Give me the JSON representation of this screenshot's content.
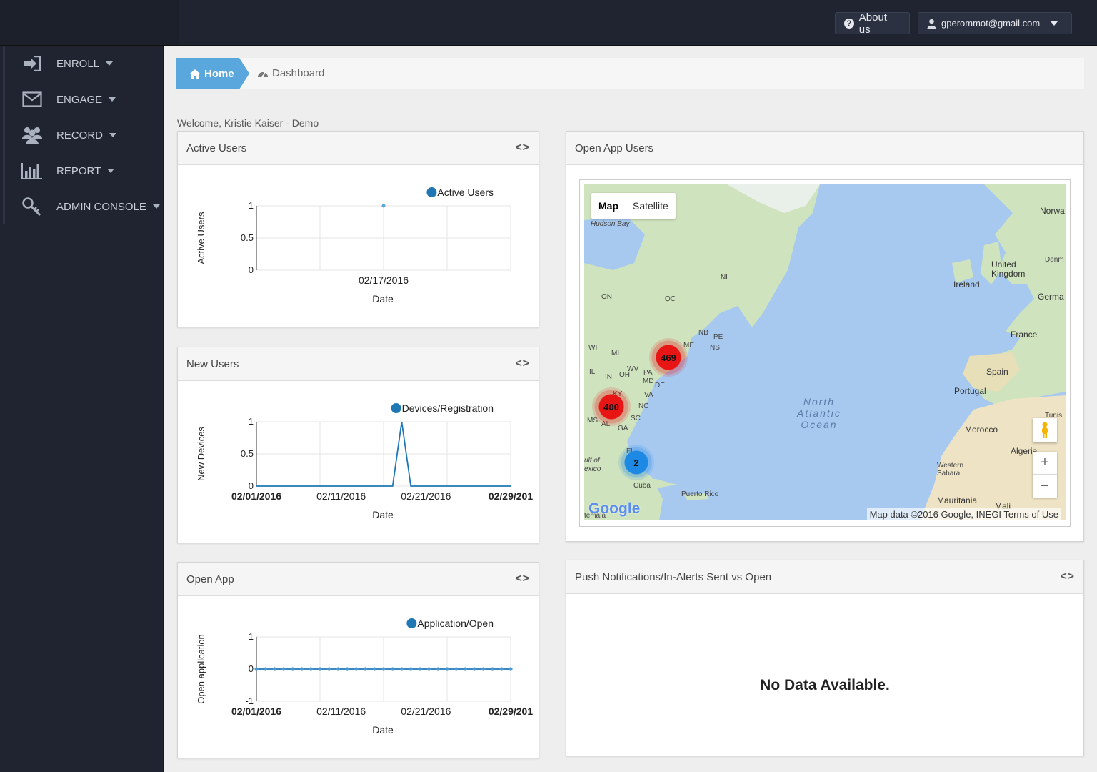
{
  "header": {
    "about_label": "About us",
    "user_email": "gperommot@gmail.com"
  },
  "sidebar": {
    "items": [
      {
        "label": "ENROLL",
        "icon": "sign-in-icon"
      },
      {
        "label": "ENGAGE",
        "icon": "envelope-icon"
      },
      {
        "label": "RECORD",
        "icon": "users-icon"
      },
      {
        "label": "REPORT",
        "icon": "bar-chart-icon"
      },
      {
        "label": "ADMIN CONSOLE",
        "icon": "key-icon"
      }
    ]
  },
  "breadcrumb": {
    "home": "Home",
    "current": "Dashboard"
  },
  "welcome": "Welcome, Kristie Kaiser - Demo",
  "panels": {
    "active_users": {
      "title": "Active Users",
      "toggle": "<>"
    },
    "new_users": {
      "title": "New Users",
      "toggle": "<>"
    },
    "open_app": {
      "title": "Open App",
      "toggle": "<>"
    },
    "open_app_users": {
      "title": "Open App Users"
    },
    "push": {
      "title": "Push Notifications/In-Alerts Sent vs Open",
      "toggle": "<>",
      "message": "No Data Available."
    }
  },
  "map": {
    "tab_map": "Map",
    "tab_satellite": "Satellite",
    "footer": "Map data ©2016 Google, INEGI   Terms of Use",
    "logo": "Google",
    "ocean": "North\nAtlantic\nOcean",
    "labels": {
      "hudson": "Hudson Bay",
      "ireland": "Ireland",
      "uk": "United\nKingdom",
      "norway": "Norwa",
      "denmark": "Denm",
      "germany": "Germa",
      "france": "France",
      "spain": "Spain",
      "portugal": "Portugal",
      "morocco": "Morocco",
      "algeria": "Algeria",
      "tunisia": "Tunis",
      "western_sahara": "Western\nSahara",
      "mauritania": "Mauritania",
      "mali": "Mali",
      "cuba": "Cuba",
      "puerto_rico": "Puerto Rico",
      "gulf": "ulf of\nexico",
      "temala": "temala",
      "on": "ON",
      "qc": "QC",
      "nl": "NL",
      "nb": "NB",
      "pe": "PE",
      "ns": "NS",
      "me": "ME",
      "wi": "WI",
      "mi": "MI",
      "il": "IL",
      "in": "IN",
      "oh": "OH",
      "pa": "PA",
      "md": "MD",
      "de": "DE",
      "wv": "WV",
      "va": "VA",
      "ky": "KY",
      "nc": "NC",
      "sc": "SC",
      "ms": "MS",
      "al": "AL",
      "ga": "GA",
      "fl": "FL"
    },
    "clusters": [
      {
        "count": "469",
        "color": "#e81515"
      },
      {
        "count": "400",
        "color": "#e81515"
      },
      {
        "count": "2",
        "color": "#1e88e5"
      }
    ]
  },
  "chart_data": [
    {
      "type": "scatter",
      "title": "Active Users",
      "xlabel": "Date",
      "ylabel": "Active Users",
      "legend": "top-right",
      "series": [
        {
          "name": "Active Users",
          "x": [
            "02/17/2016"
          ],
          "values": [
            1
          ],
          "color": "#1f77b4"
        }
      ],
      "x_ticks": [
        "02/17/2016"
      ],
      "y_ticks": [
        "0",
        "0.5",
        "1"
      ],
      "ylim": [
        0,
        1
      ]
    },
    {
      "type": "line",
      "title": "New Users",
      "xlabel": "Date",
      "ylabel": "New Devices",
      "legend": "top-right",
      "xlim": [
        "02/01/2016",
        "02/29/2016"
      ],
      "series": [
        {
          "name": "Devices/Registration",
          "color": "#1f77b4",
          "x": [
            "02/01/2016",
            "02/02/2016",
            "02/03/2016",
            "02/04/2016",
            "02/05/2016",
            "02/06/2016",
            "02/07/2016",
            "02/08/2016",
            "02/09/2016",
            "02/10/2016",
            "02/11/2016",
            "02/12/2016",
            "02/13/2016",
            "02/14/2016",
            "02/15/2016",
            "02/16/2016",
            "02/17/2016",
            "02/18/2016",
            "02/19/2016",
            "02/20/2016",
            "02/21/2016",
            "02/22/2016",
            "02/23/2016",
            "02/24/2016",
            "02/25/2016",
            "02/26/2016",
            "02/27/2016",
            "02/28/2016",
            "02/29/2016"
          ],
          "values": [
            0,
            0,
            0,
            0,
            0,
            0,
            0,
            0,
            0,
            0,
            0,
            0,
            0,
            0,
            0,
            0,
            1,
            0,
            0,
            0,
            0,
            0,
            0,
            0,
            0,
            0,
            0,
            0,
            0
          ]
        }
      ],
      "x_ticks": [
        "02/01/2016",
        "02/11/2016",
        "02/21/2016",
        "02/29/201"
      ],
      "y_ticks": [
        "0",
        "0.5",
        "1"
      ],
      "ylim": [
        0,
        1
      ]
    },
    {
      "type": "line",
      "title": "Open App",
      "xlabel": "Date",
      "ylabel": "Open application",
      "legend": "top-right",
      "xlim": [
        "02/01/2016",
        "02/29/2016"
      ],
      "series": [
        {
          "name": "Application/Open",
          "color": "#1f77b4",
          "x": [
            "02/01/2016",
            "02/02/2016",
            "02/03/2016",
            "02/04/2016",
            "02/05/2016",
            "02/06/2016",
            "02/07/2016",
            "02/08/2016",
            "02/09/2016",
            "02/10/2016",
            "02/11/2016",
            "02/12/2016",
            "02/13/2016",
            "02/14/2016",
            "02/15/2016",
            "02/16/2016",
            "02/17/2016",
            "02/18/2016",
            "02/19/2016",
            "02/20/2016",
            "02/21/2016",
            "02/22/2016",
            "02/23/2016",
            "02/24/2016",
            "02/25/2016",
            "02/26/2016",
            "02/27/2016",
            "02/28/2016",
            "02/29/2016"
          ],
          "values": [
            0,
            0,
            0,
            0,
            0,
            0,
            0,
            0,
            0,
            0,
            0,
            0,
            0,
            0,
            0,
            0,
            0,
            0,
            0,
            0,
            0,
            0,
            0,
            0,
            0,
            0,
            0,
            0,
            0
          ]
        }
      ],
      "x_ticks": [
        "02/01/2016",
        "02/11/2016",
        "02/21/2016",
        "02/29/201"
      ],
      "y_ticks": [
        "-1",
        "0",
        "1"
      ],
      "ylim": [
        -1,
        1
      ]
    }
  ]
}
